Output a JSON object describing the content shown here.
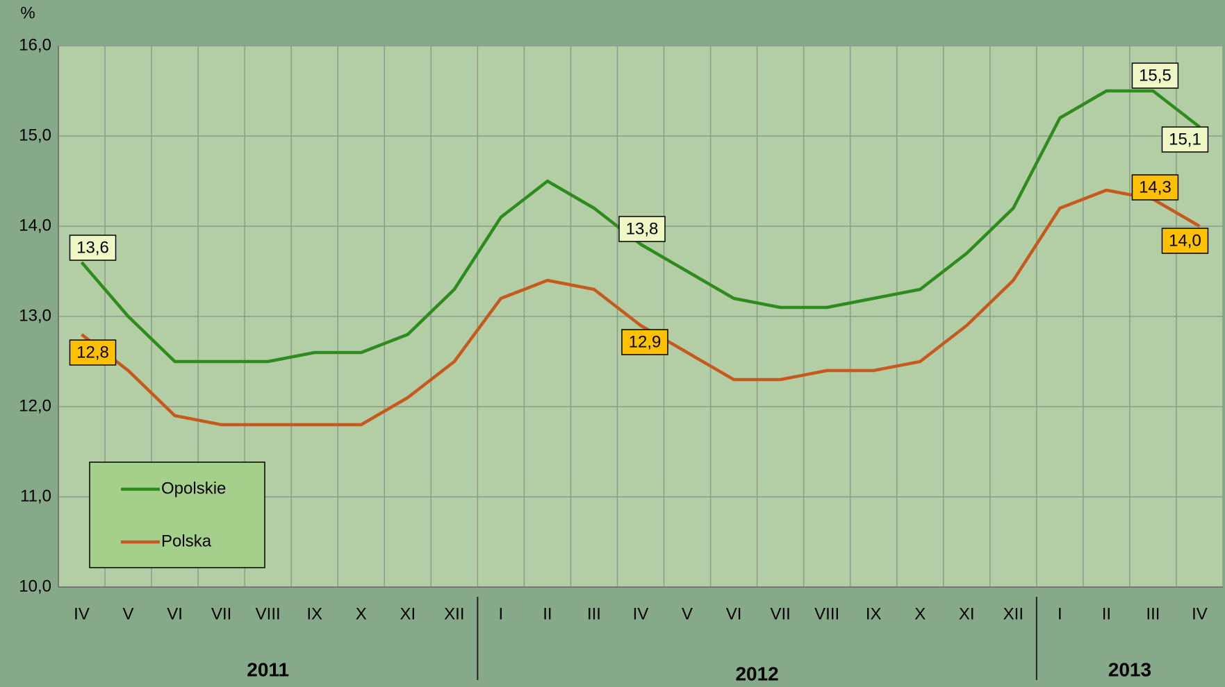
{
  "chart_data": {
    "type": "line",
    "y_unit": "%",
    "categories": [
      "IV",
      "V",
      "VI",
      "VII",
      "VIII",
      "IX",
      "X",
      "XI",
      "XII",
      "I",
      "II",
      "III",
      "IV",
      "V",
      "VI",
      "VII",
      "VIII",
      "IX",
      "X",
      "XI",
      "XII",
      "I",
      "II",
      "III",
      "IV"
    ],
    "groups": [
      {
        "label": "2011",
        "start": 0,
        "end": 8
      },
      {
        "label": "2012",
        "start": 9,
        "end": 20
      },
      {
        "label": "2013",
        "start": 21,
        "end": 24
      }
    ],
    "series": [
      {
        "name": "Opolskie",
        "color": "#2e8b1e",
        "label_fill": "#eef7c6",
        "values": [
          13.6,
          13.0,
          12.5,
          12.5,
          12.5,
          12.6,
          12.6,
          12.8,
          13.3,
          14.1,
          14.5,
          14.2,
          13.8,
          13.5,
          13.2,
          13.1,
          13.1,
          13.2,
          13.3,
          13.7,
          14.2,
          15.2,
          15.5,
          15.5,
          15.1
        ],
        "value_labels": [
          "13,6",
          null,
          null,
          null,
          null,
          null,
          null,
          null,
          null,
          null,
          null,
          null,
          "13,8",
          null,
          null,
          null,
          null,
          null,
          null,
          null,
          null,
          null,
          null,
          "15,5",
          "15,1"
        ]
      },
      {
        "name": "Polska",
        "color": "#c65a1e",
        "label_fill": "#ffc000",
        "values": [
          12.8,
          12.4,
          11.9,
          11.8,
          11.8,
          11.8,
          11.8,
          12.1,
          12.5,
          13.2,
          13.4,
          13.3,
          12.9,
          12.6,
          12.3,
          12.3,
          12.4,
          12.4,
          12.5,
          12.9,
          13.4,
          14.2,
          14.4,
          14.3,
          14.0
        ],
        "value_labels": [
          "12,8",
          null,
          null,
          null,
          null,
          null,
          null,
          null,
          null,
          null,
          null,
          null,
          "12,9",
          null,
          null,
          null,
          null,
          null,
          null,
          null,
          null,
          null,
          null,
          "14,3",
          "14,0"
        ]
      }
    ],
    "ylim": [
      10,
      16
    ],
    "yticks": [
      {
        "value": 10,
        "label": "10,0"
      },
      {
        "value": 11,
        "label": "11,0"
      },
      {
        "value": 12,
        "label": "12,0"
      },
      {
        "value": 13,
        "label": "13,0"
      },
      {
        "value": 14,
        "label": "14,0"
      },
      {
        "value": 15,
        "label": "15,0"
      },
      {
        "value": 16,
        "label": "16,0"
      }
    ],
    "grid": true,
    "legend": "lower left"
  }
}
